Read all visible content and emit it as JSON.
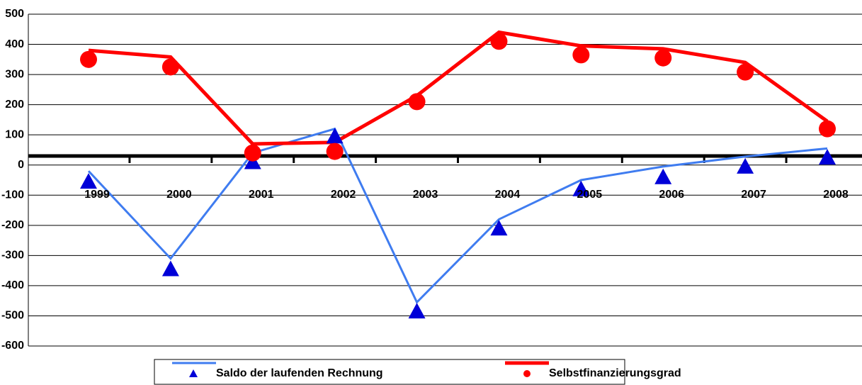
{
  "chart_data": {
    "type": "line",
    "categories": [
      "1999",
      "2000",
      "2001",
      "2002",
      "2003",
      "2004",
      "2005",
      "2006",
      "2007",
      "2008"
    ],
    "series": [
      {
        "name": "Saldo der laufenden Rechnung",
        "color": "#3f7cf0",
        "marker": "triangle",
        "marker_color": "#0000d8",
        "values": [
          -20,
          -310,
          40,
          120,
          -455,
          -180,
          -50,
          -5,
          28,
          55
        ],
        "marker_values": [
          -55,
          -345,
          10,
          95,
          -485,
          -210,
          -80,
          -40,
          -5,
          25
        ]
      },
      {
        "name": "Selbstfinanzierungsgrad",
        "color": "#ff0000",
        "marker": "circle",
        "marker_color": "#ff0000",
        "values": [
          380,
          358,
          70,
          75,
          230,
          440,
          395,
          385,
          340,
          145
        ],
        "marker_values": [
          350,
          325,
          40,
          45,
          210,
          410,
          365,
          355,
          308,
          120
        ]
      }
    ],
    "ylim": [
      -600,
      500
    ],
    "yticks": [
      -600,
      -500,
      -400,
      -300,
      -200,
      -100,
      0,
      100,
      200,
      300,
      400,
      500
    ],
    "x_axis_at": 30,
    "grid": true,
    "legend": "bottom"
  }
}
